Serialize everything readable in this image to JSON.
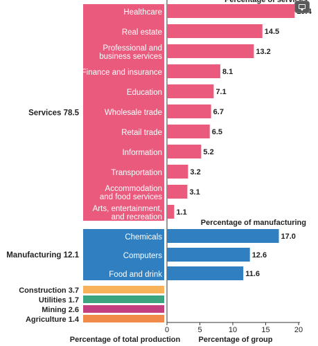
{
  "chart_data": {
    "type": "bar",
    "left_panel": {
      "xlabel": "Percentage of total production",
      "groups": [
        {
          "label": "Services 78.5",
          "value": 78.5,
          "color": "#ea5a7d",
          "categories": [
            "Healthcare",
            "Real estate",
            "Professional and\nbusiness services",
            "Finance and insurance",
            "Education",
            "Wholesale trade",
            "Retail trade",
            "Information",
            "Transportation",
            "Accommodation\nand food services",
            "Arts, entertainment,\nand recreation"
          ]
        },
        {
          "label": "Manufacturing 12.1",
          "value": 12.1,
          "color": "#2f7fc1",
          "categories": [
            "Chemicals",
            "Computers",
            "Food and drink"
          ]
        },
        {
          "label": "Construction 3.7",
          "value": 3.7,
          "color": "#f7b25a",
          "categories": []
        },
        {
          "label": "Utilities 1.7",
          "value": 1.7,
          "color": "#3aa57f",
          "categories": []
        },
        {
          "label": "Mining 2.6",
          "value": 2.6,
          "color": "#c2407f",
          "categories": []
        },
        {
          "label": "Agriculture 1.4",
          "value": 1.4,
          "color": "#f08a4b",
          "categories": []
        }
      ]
    },
    "right_panel": {
      "xlabel": "Percentage of group",
      "xlim": [
        0,
        20
      ],
      "xticks": [
        0,
        5,
        10,
        15,
        20
      ],
      "series": [
        {
          "name": "Percentage of services",
          "color": "#ea5a7d",
          "values": [
            19.4,
            14.5,
            13.2,
            8.1,
            7.1,
            6.7,
            6.5,
            5.2,
            3.2,
            3.1,
            1.1
          ],
          "value_labels": [
            "19.4",
            "14.5",
            "13.2",
            "8.1",
            "7.1",
            "6.7",
            "6.5",
            "5.2",
            "3.2",
            "3.1",
            "1.1"
          ]
        },
        {
          "name": "Percentage of manufacturing",
          "color": "#2f7fc1",
          "values": [
            17.0,
            12.6,
            11.6
          ],
          "value_labels": [
            "17.0",
            "12.6",
            "11.6"
          ]
        }
      ]
    }
  },
  "header_fragment": "Percentage of services",
  "icons": {
    "corner_button": "comment-icon"
  }
}
